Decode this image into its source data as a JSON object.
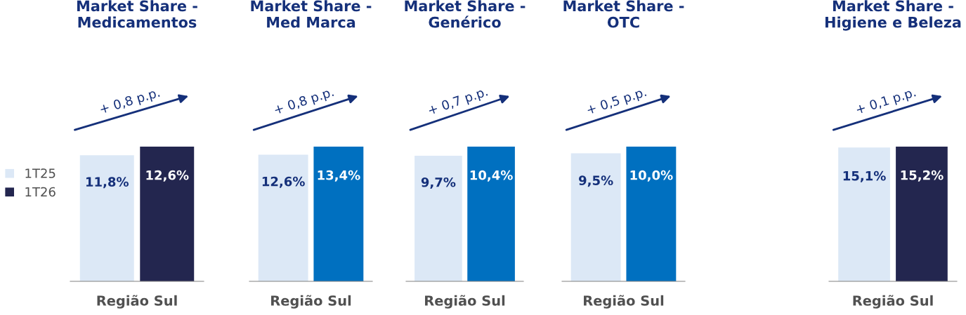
{
  "chart_data": [
    {
      "type": "bar",
      "title": "Market Share -\nMedicamentos",
      "categories": [
        "Região Sul"
      ],
      "legend": "left",
      "annotations": [
        "+ 0,8 p.p."
      ],
      "series": [
        {
          "name": "1T25",
          "color": "#dce8f6",
          "values": [
            11.8
          ],
          "value_labels": [
            "11,8%"
          ]
        },
        {
          "name": "1T26",
          "color": "#23264f",
          "values": [
            12.6
          ],
          "value_labels": [
            "12,6%"
          ]
        }
      ]
    },
    {
      "type": "bar",
      "title": "Market Share -\nMed Marca",
      "categories": [
        "Região Sul"
      ],
      "annotations": [
        "+ 0,8 p.p."
      ],
      "series": [
        {
          "color": "#dce8f6",
          "values": [
            12.6
          ],
          "value_labels": [
            "12,6%"
          ]
        },
        {
          "color": "#0070c0",
          "values": [
            13.4
          ],
          "value_labels": [
            "13,4%"
          ]
        }
      ]
    },
    {
      "type": "bar",
      "title": "Market Share -\nGenérico",
      "categories": [
        "Região Sul"
      ],
      "annotations": [
        "+ 0,7 p.p."
      ],
      "series": [
        {
          "color": "#dce8f6",
          "values": [
            9.7
          ],
          "value_labels": [
            "9,7%"
          ]
        },
        {
          "color": "#0070c0",
          "values": [
            10.4
          ],
          "value_labels": [
            "10,4%"
          ]
        }
      ]
    },
    {
      "type": "bar",
      "title": "Market Share -\nOTC",
      "categories": [
        "Região Sul"
      ],
      "annotations": [
        "+ 0,5 p.p."
      ],
      "series": [
        {
          "color": "#dce8f6",
          "values": [
            9.5
          ],
          "value_labels": [
            "9,5%"
          ]
        },
        {
          "color": "#0070c0",
          "values": [
            10.0
          ],
          "value_labels": [
            "10,0%"
          ]
        }
      ]
    },
    {
      "type": "bar",
      "title": "Market Share -\nHigiene e Beleza",
      "categories": [
        "Região Sul"
      ],
      "annotations": [
        "+ 0,1 p.p."
      ],
      "series": [
        {
          "color": "#dce8f6",
          "values": [
            15.1
          ],
          "value_labels": [
            "15,1%"
          ]
        },
        {
          "color": "#23264f",
          "values": [
            15.2
          ],
          "value_labels": [
            "15,2%"
          ]
        }
      ]
    }
  ]
}
